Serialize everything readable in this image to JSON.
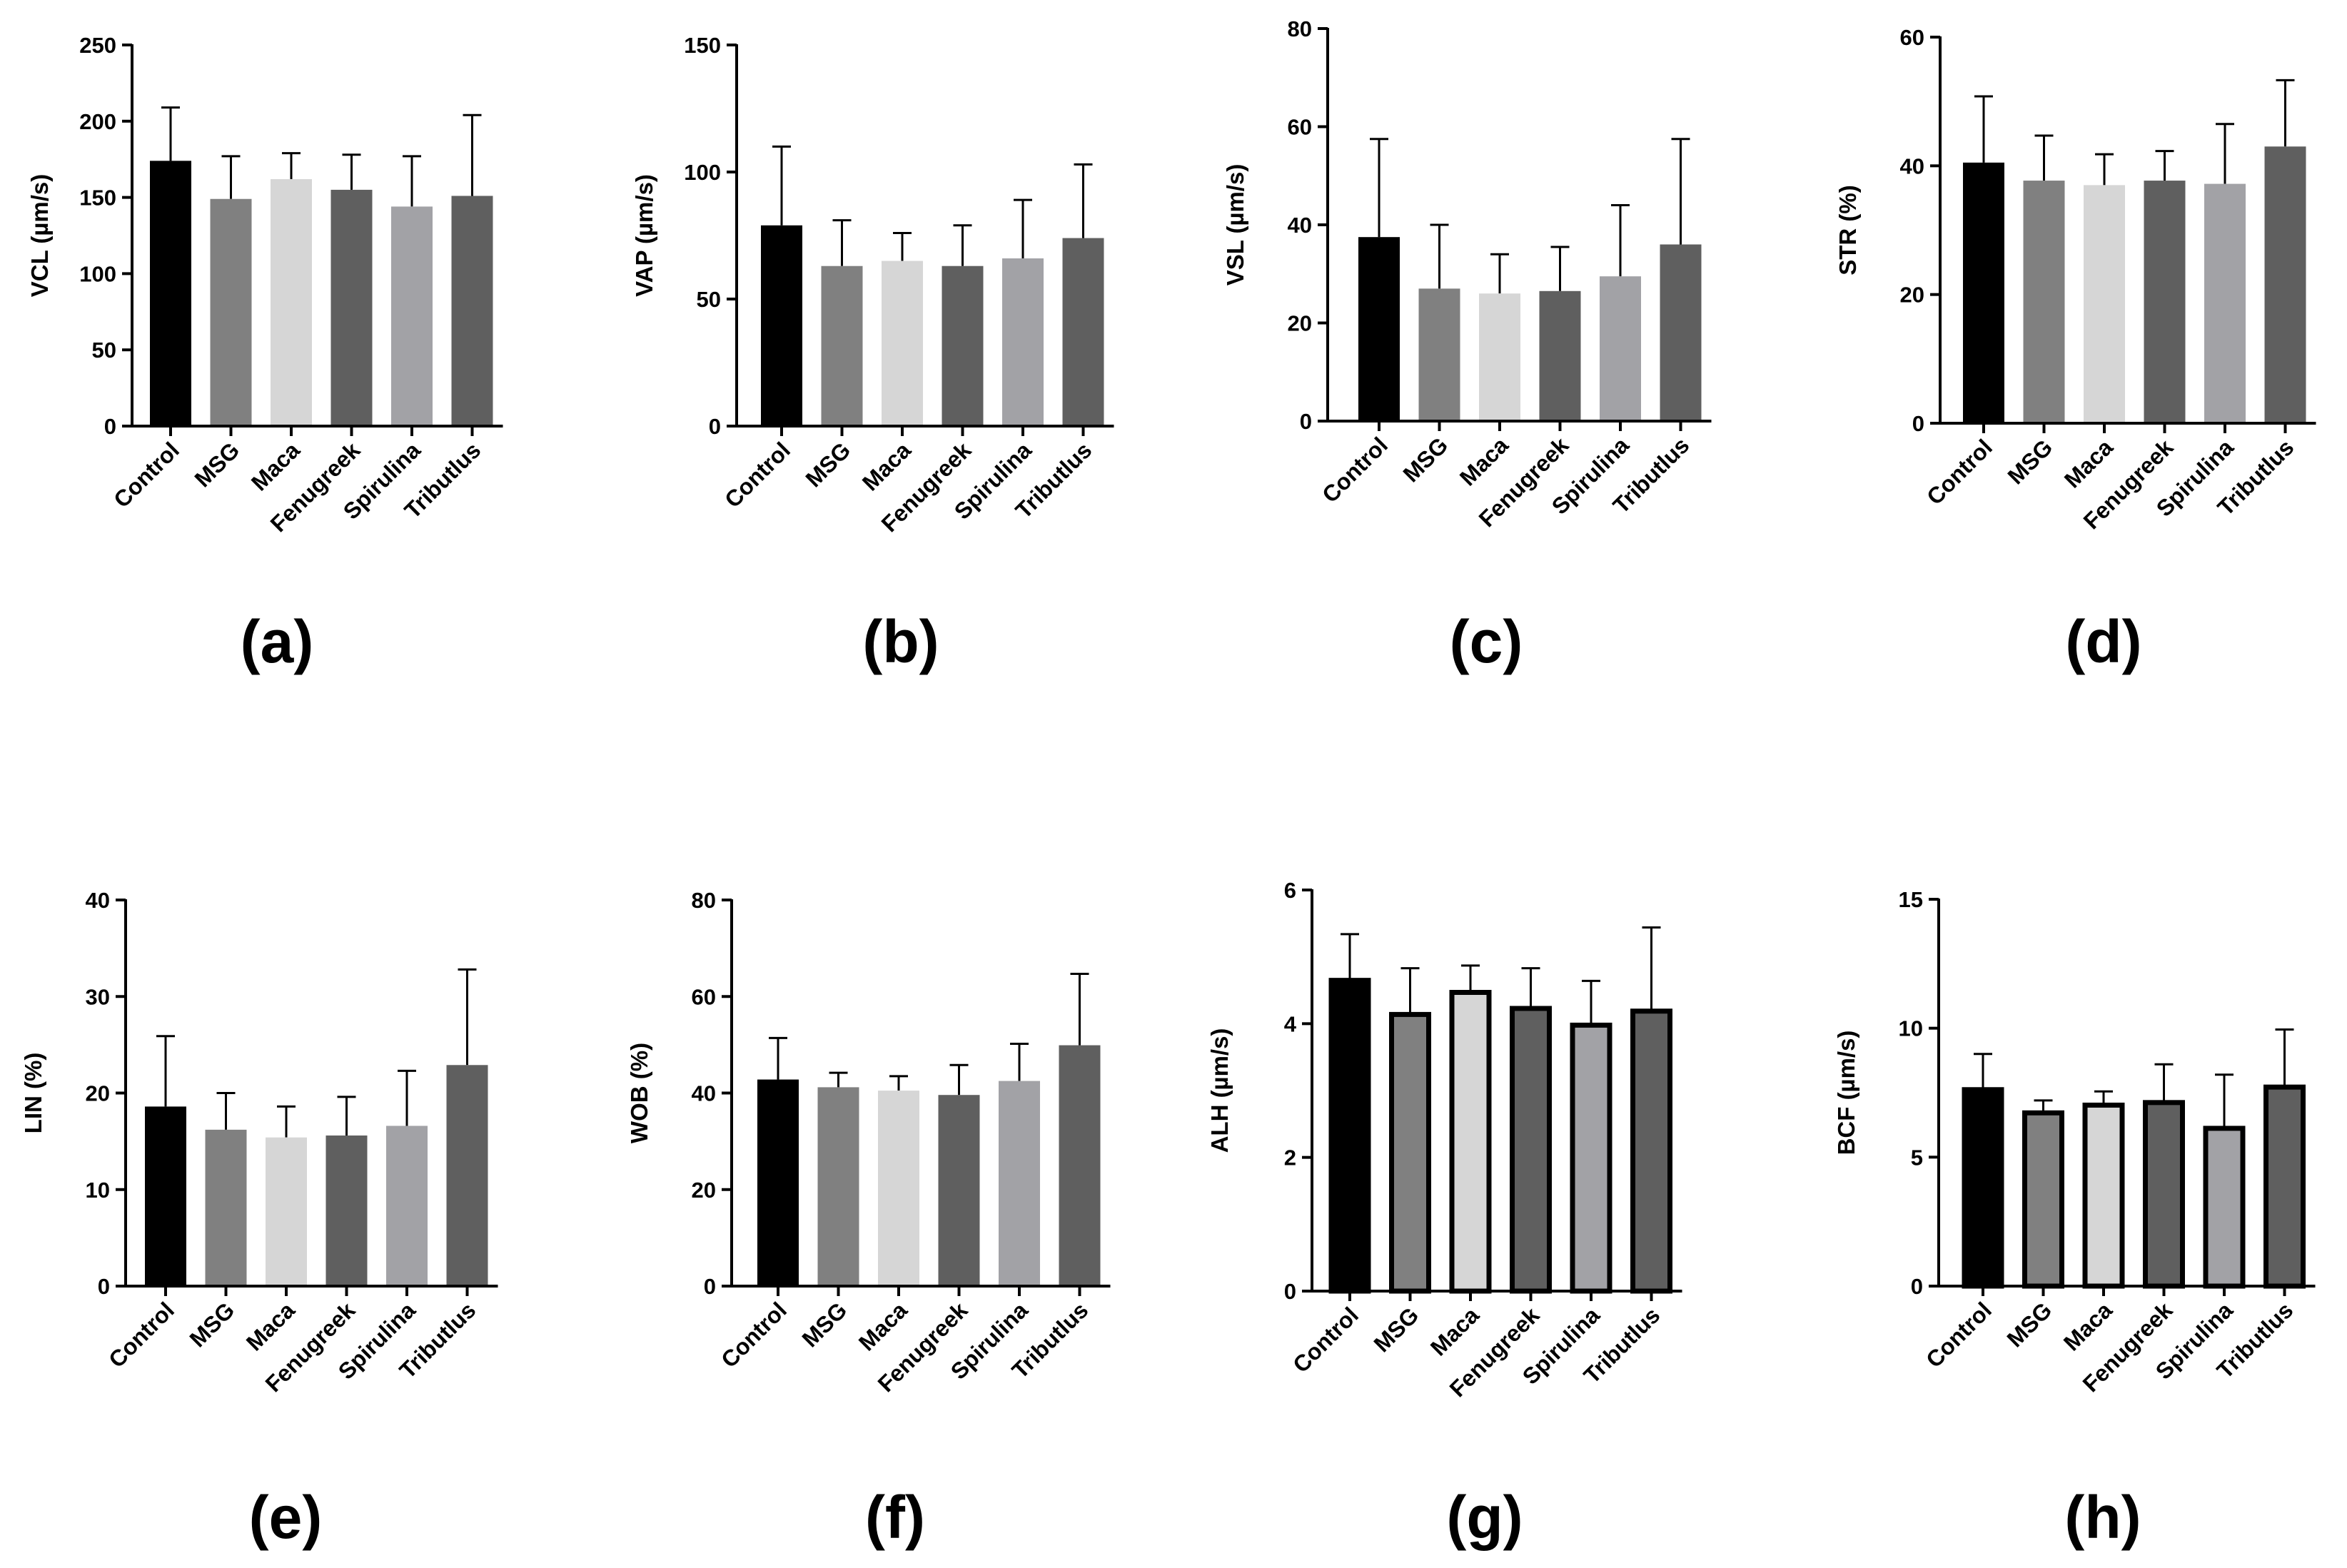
{
  "figure": {
    "categories": [
      "Control",
      "MSG",
      "Maca",
      "Fenugreek",
      "Spirulina",
      "Tributlus"
    ],
    "colors": [
      "#000000",
      "#808080",
      "#d6d6d6",
      "#5f5f5f",
      "#a2a2a6",
      "#5f5f5f"
    ]
  },
  "chart_data": [
    {
      "type": "bar",
      "panel": "(a)",
      "ylabel": "VCL (µm/s)",
      "ylim": [
        0,
        250
      ],
      "yticks": [
        0,
        50,
        100,
        150,
        200,
        250
      ],
      "categories": [
        "Control",
        "MSG",
        "Maca",
        "Fenugreek",
        "Spirulina",
        "Tributlus"
      ],
      "values": [
        174,
        149,
        162,
        155,
        144,
        151
      ],
      "errors": [
        35,
        28,
        17,
        23,
        33,
        53
      ],
      "outlined": false
    },
    {
      "type": "bar",
      "panel": "(b)",
      "ylabel": "VAP (µm/s)",
      "ylim": [
        0,
        150
      ],
      "yticks": [
        0,
        50,
        100,
        150
      ],
      "categories": [
        "Control",
        "MSG",
        "Maca",
        "Fenugreek",
        "Spirulina",
        "Tributlus"
      ],
      "values": [
        79,
        63,
        65,
        63,
        66,
        74
      ],
      "errors": [
        31,
        18,
        11,
        16,
        23,
        29
      ],
      "outlined": false
    },
    {
      "type": "bar",
      "panel": "(c)",
      "ylabel": "VSL (µm/s)",
      "ylim": [
        0,
        80
      ],
      "yticks": [
        0,
        20,
        40,
        60,
        80
      ],
      "categories": [
        "Control",
        "MSG",
        "Maca",
        "Fenugreek",
        "Spirulina",
        "Tributlus"
      ],
      "values": [
        37.5,
        27,
        26,
        26.5,
        29.5,
        36
      ],
      "errors": [
        20,
        13,
        8,
        9,
        14.5,
        21.5
      ],
      "outlined": false
    },
    {
      "type": "bar",
      "panel": "(d)",
      "ylabel": "STR (%)",
      "ylim": [
        0,
        60
      ],
      "yticks": [
        0,
        20,
        40,
        60
      ],
      "categories": [
        "Control",
        "MSG",
        "Maca",
        "Fenugreek",
        "Spirulina",
        "Tributlus"
      ],
      "values": [
        40.5,
        37.7,
        37,
        37.7,
        37.2,
        43
      ],
      "errors": [
        10.3,
        7,
        4.8,
        4.6,
        9.3,
        10.3
      ],
      "outlined": false
    },
    {
      "type": "bar",
      "panel": "(e)",
      "ylabel": "LIN (%)",
      "ylim": [
        0,
        40
      ],
      "yticks": [
        0,
        10,
        20,
        30,
        40
      ],
      "categories": [
        "Control",
        "MSG",
        "Maca",
        "Fenugreek",
        "Spirulina",
        "Tributlus"
      ],
      "values": [
        18.6,
        16.2,
        15.4,
        15.6,
        16.6,
        22.9
      ],
      "errors": [
        7.3,
        3.8,
        3.2,
        4,
        5.7,
        9.9
      ],
      "outlined": false
    },
    {
      "type": "bar",
      "panel": "(f)",
      "ylabel": "WOB (%)",
      "ylim": [
        0,
        80
      ],
      "yticks": [
        0,
        20,
        40,
        60,
        80
      ],
      "categories": [
        "Control",
        "MSG",
        "Maca",
        "Fenugreek",
        "Spirulina",
        "Tributlus"
      ],
      "values": [
        42.8,
        41.2,
        40.5,
        39.6,
        42.5,
        49.9
      ],
      "errors": [
        8.6,
        3,
        3,
        6.2,
        7.7,
        14.8
      ],
      "outlined": false
    },
    {
      "type": "bar",
      "panel": "(g)",
      "ylabel": "ALH (µm/s)",
      "ylim": [
        0,
        6
      ],
      "yticks": [
        0,
        2,
        4,
        6
      ],
      "categories": [
        "Control",
        "MSG",
        "Maca",
        "Fenugreek",
        "Spirulina",
        "Tributlus"
      ],
      "values": [
        4.68,
        4.17,
        4.5,
        4.26,
        4.01,
        4.22
      ],
      "errors": [
        0.66,
        0.66,
        0.37,
        0.57,
        0.63,
        1.22
      ],
      "outlined": true
    },
    {
      "type": "bar",
      "panel": "(h)",
      "ylabel": "BCF (µm/s)",
      "ylim": [
        0,
        15
      ],
      "yticks": [
        0,
        5,
        10,
        15
      ],
      "categories": [
        "Control",
        "MSG",
        "Maca",
        "Fenugreek",
        "Spirulina",
        "Tributlus"
      ],
      "values": [
        7.7,
        6.8,
        7.1,
        7.2,
        6.2,
        7.8
      ],
      "errors": [
        1.3,
        0.4,
        0.45,
        1.4,
        2,
        2.15
      ],
      "outlined": true
    }
  ]
}
